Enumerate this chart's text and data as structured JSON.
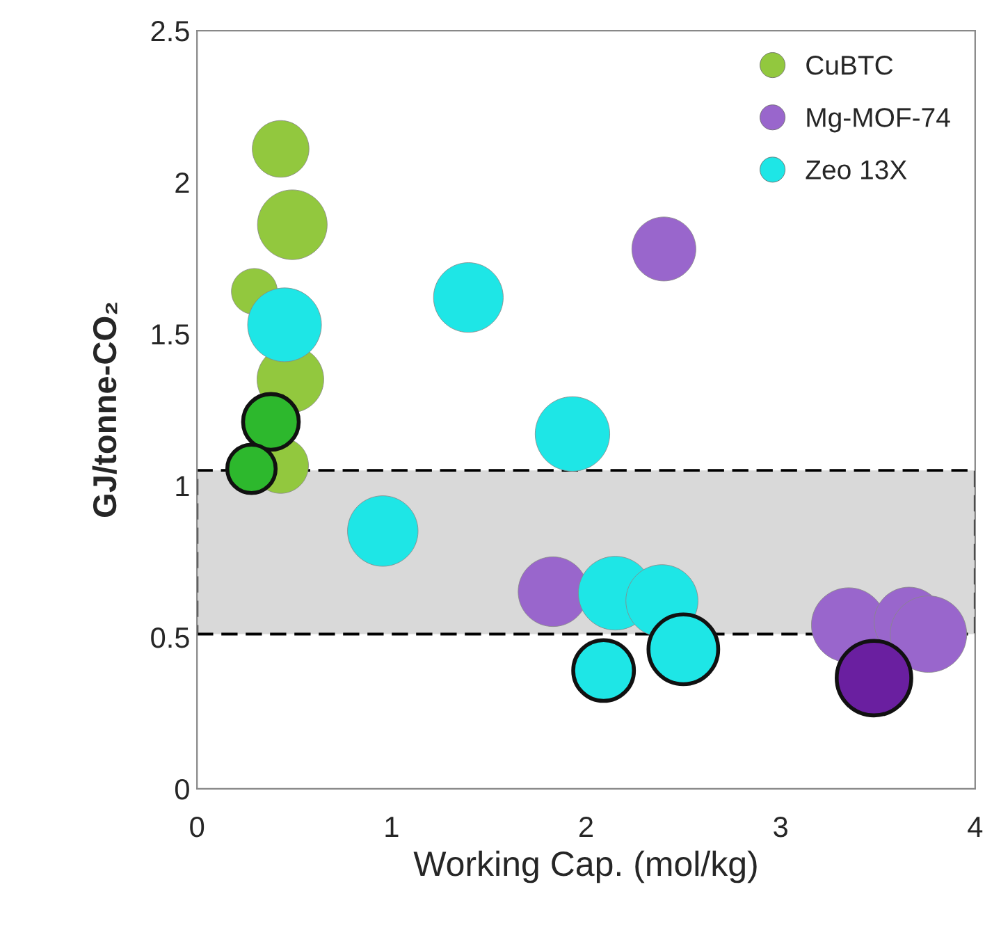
{
  "chart_data": {
    "type": "bubble",
    "xlabel": "Working Cap. (mol/kg)",
    "ylabel": "GJ/tonne-CO₂",
    "xlim": [
      0,
      4
    ],
    "xticks": [
      0,
      1,
      2,
      3,
      4
    ],
    "ylim": [
      0,
      2.5
    ],
    "yticks": [
      0,
      0.5,
      1,
      1.5,
      2,
      2.5
    ],
    "grid": false,
    "legend": "top right",
    "marker": "circle",
    "bands": [
      {
        "axis": "y",
        "from": 0.51,
        "to": 1.05,
        "color": "#d9d9d9"
      }
    ],
    "series": [
      {
        "name": "CuBTC",
        "color": "#92c83e",
        "x": [
          0.43,
          0.49,
          0.295,
          0.48,
          0.43
        ],
        "values": [
          2.11,
          1.86,
          1.64,
          1.35,
          1.066
        ],
        "sizes": [
          0.55,
          0.83,
          0.36,
          0.76,
          0.53
        ]
      },
      {
        "color": "#2db82d",
        "x": [
          0.38,
          0.28
        ],
        "values": [
          1.21,
          1.055
        ],
        "sizes": [
          0.53,
          0.4
        ]
      },
      {
        "name": "Mg-MOF-74",
        "color": "#9966cc",
        "x": [
          2.4,
          1.83,
          3.35,
          3.66,
          3.76
        ],
        "values": [
          1.78,
          0.65,
          0.54,
          0.55,
          0.51
        ],
        "sizes": [
          0.7,
          0.83,
          0.95,
          0.83,
          1.0
        ]
      },
      {
        "name": "Zeo 13X",
        "color": "#1ee6e6",
        "x": [
          0.45,
          1.395,
          1.93,
          0.955,
          2.15,
          2.39
        ],
        "values": [
          1.53,
          1.62,
          1.17,
          0.85,
          0.645,
          0.62
        ],
        "sizes": [
          0.93,
          0.83,
          0.95,
          0.85,
          0.93,
          0.89
        ]
      },
      {
        "color": "#1ee6e6",
        "x": [
          2.09,
          2.5
        ],
        "values": [
          0.39,
          0.46
        ],
        "sizes": [
          0.63,
          0.83
        ]
      },
      {
        "color": "#6a1fa0",
        "x": [
          3.48
        ],
        "values": [
          0.365
        ],
        "sizes": [
          0.95
        ]
      }
    ]
  }
}
